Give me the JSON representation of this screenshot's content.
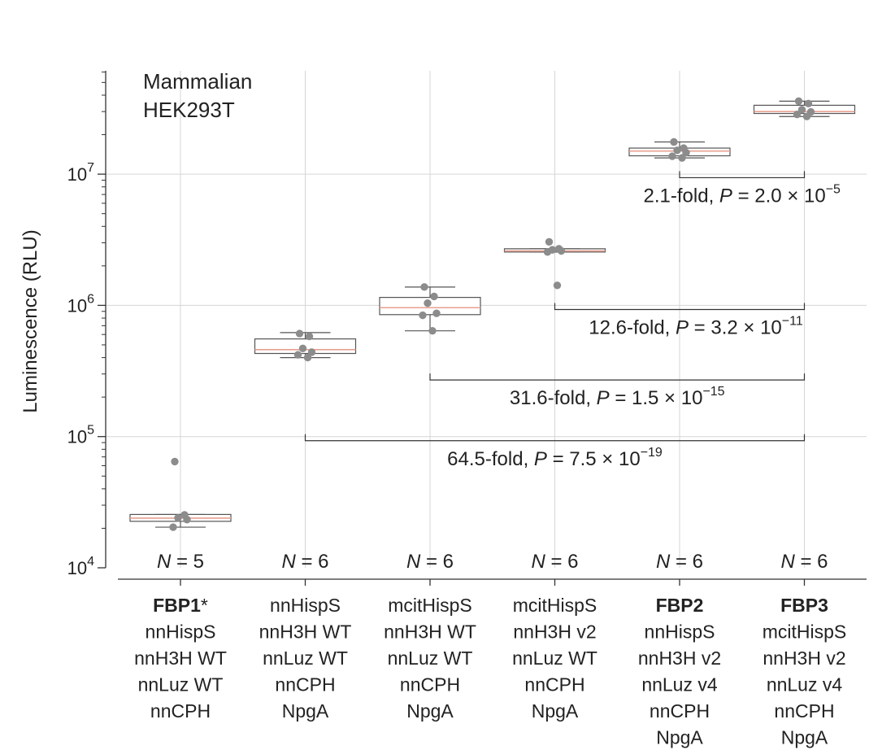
{
  "chart_data": {
    "type": "box",
    "inset_text": [
      "Mammalian",
      "HEK293T"
    ],
    "ylabel": "Luminescence (RLU)",
    "yscale": "log",
    "ylim": [
      10000,
      60000000
    ],
    "yticks": [
      {
        "value": 10000,
        "base": "10",
        "exp": "4"
      },
      {
        "value": 100000,
        "base": "10",
        "exp": "5"
      },
      {
        "value": 1000000,
        "base": "10",
        "exp": "6"
      },
      {
        "value": 10000000,
        "base": "10",
        "exp": "7"
      }
    ],
    "grid": true,
    "categories": [
      {
        "bold": "FBP1",
        "suffix": "*",
        "lines": [
          "nnHispS",
          "nnH3H WT",
          "nnLuz WT",
          "nnCPH"
        ]
      },
      {
        "bold": "",
        "suffix": "",
        "lines": [
          "nnHispS",
          "nnH3H WT",
          "nnLuz WT",
          "nnCPH",
          "NpgA"
        ]
      },
      {
        "bold": "",
        "suffix": "",
        "lines": [
          "mcitHispS",
          "nnH3H WT",
          "nnLuz WT",
          "nnCPH",
          "NpgA"
        ]
      },
      {
        "bold": "",
        "suffix": "",
        "lines": [
          "mcitHispS",
          "nnH3H v2",
          "nnLuz WT",
          "nnCPH",
          "NpgA"
        ]
      },
      {
        "bold": "FBP2",
        "suffix": "",
        "lines": [
          "nnHispS",
          "nnH3H v2",
          "nnLuz v4",
          "nnCPH",
          "NpgA"
        ]
      },
      {
        "bold": "FBP3",
        "suffix": "",
        "lines": [
          "mcitHispS",
          "nnH3H v2",
          "nnLuz v4",
          "nnCPH",
          "NpgA"
        ]
      }
    ],
    "n_labels": [
      {
        "prefix": "N",
        "rest": " = 5"
      },
      {
        "prefix": "N",
        "rest": " = 6"
      },
      {
        "prefix": "N",
        "rest": " = 6"
      },
      {
        "prefix": "N",
        "rest": " = 6"
      },
      {
        "prefix": "N",
        "rest": " = 6"
      },
      {
        "prefix": "N",
        "rest": " = 6"
      }
    ],
    "boxes": [
      {
        "q1": 22600,
        "median": 23900,
        "q3": 25500,
        "whislo": 20400,
        "whishi": 25500
      },
      {
        "q1": 430000,
        "median": 460000,
        "q3": 555000,
        "whislo": 400000,
        "whishi": 620000
      },
      {
        "q1": 850000,
        "median": 960000,
        "q3": 1150000,
        "whislo": 640000,
        "whishi": 1380000
      },
      {
        "q1": 2550000,
        "median": 2600000,
        "q3": 2700000,
        "whislo": 2550000,
        "whishi": 2700000
      },
      {
        "q1": 13800000,
        "median": 15000000,
        "q3": 15800000,
        "whislo": 13300000,
        "whishi": 17600000
      },
      {
        "q1": 29000000,
        "median": 30000000,
        "q3": 33500000,
        "whislo": 27500000,
        "whishi": 36000000
      }
    ],
    "points": [
      [
        64500,
        25300,
        24000,
        23300,
        20400
      ],
      [
        610000,
        580000,
        470000,
        440000,
        420000,
        400000
      ],
      [
        1380000,
        1170000,
        1040000,
        870000,
        840000,
        640000
      ],
      [
        3050000,
        2700000,
        2650000,
        2600000,
        2550000,
        1420000
      ],
      [
        17600000,
        15800000,
        15200000,
        14600000,
        13700000,
        13300000
      ],
      [
        36000000,
        34500000,
        31000000,
        29800000,
        28500000,
        27500000
      ]
    ],
    "comparisons": [
      {
        "from": 4,
        "to": 5,
        "y": 9400000,
        "text": {
          "fold": "2.1-fold, ",
          "p": "P",
          "eq": " = 2.0 × 10",
          "exp": "−5"
        }
      },
      {
        "from": 3,
        "to": 5,
        "y": 930000,
        "text": {
          "fold": "12.6-fold, ",
          "p": "P",
          "eq": " = 3.2 × 10",
          "exp": "−11"
        }
      },
      {
        "from": 2,
        "to": 5,
        "y": 270000,
        "text": {
          "fold": "31.6-fold, ",
          "p": "P",
          "eq": " = 1.5 × 10",
          "exp": "−15"
        }
      },
      {
        "from": 1,
        "to": 5,
        "y": 93000,
        "text": {
          "fold": "64.5-fold, ",
          "p": "P",
          "eq": " = 7.5 × 10",
          "exp": "−19"
        }
      }
    ],
    "colors": {
      "box_edge": "#555555",
      "median": "#e8a090",
      "point": "#8c8c8c",
      "grid": "#d6d6d6",
      "axis": "#333333"
    }
  }
}
